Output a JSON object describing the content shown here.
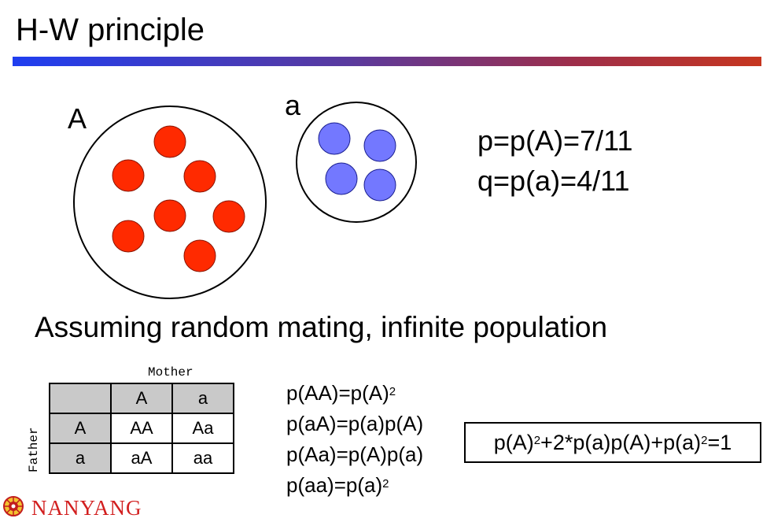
{
  "slide": {
    "title": "H-W principle",
    "allele_big": "A",
    "allele_small": "a",
    "p_formula": "p=p(A)=7/11",
    "q_formula": "q=p(a)=4/11",
    "assumption": "Assuming random mating, infinite population"
  },
  "colors": {
    "allele_A": "#ff2a00",
    "allele_a": "#7378ff"
  },
  "punnett": {
    "mother_label": "Mother",
    "father_label": "Father",
    "header": [
      "",
      "A",
      "a"
    ],
    "rows": [
      [
        "A",
        "AA",
        "Aa"
      ],
      [
        "a",
        "aA",
        "aa"
      ]
    ]
  },
  "equations": {
    "eq1_main": "p(AA)=p(A)",
    "eq1_sup": "2",
    "eq2": "p(aA)=p(a)p(A)",
    "eq3": "p(Aa)=p(A)p(a)",
    "eq4_main": "p(aa)=p(a)",
    "eq4_sup": "2"
  },
  "summary": {
    "part1": "p(A)",
    "sup1": "2",
    "part2": "+2*p(a)p(A)+p(a)",
    "sup2": "2",
    "part3": "=1"
  },
  "footer": {
    "logo_text": "NANYANG",
    "icon": "crest-icon"
  }
}
